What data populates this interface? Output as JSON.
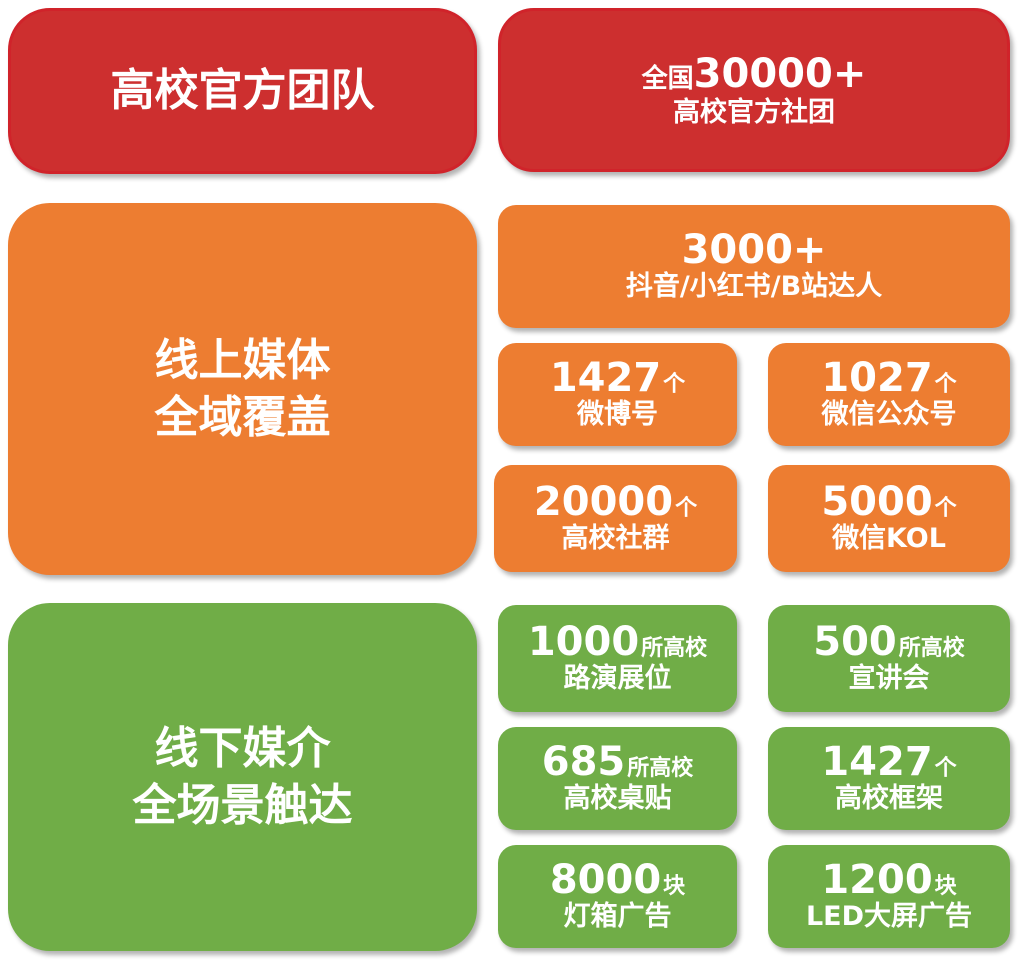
{
  "colors": {
    "red": "#CD2F2F",
    "orange": "#ED7D31",
    "green": "#70AD47"
  },
  "team": {
    "title": "高校官方团队",
    "stat_prefix": "全国",
    "stat_number": "30000+",
    "stat_label": "高校官方社团"
  },
  "online": {
    "title_line1": "线上媒体",
    "title_line2": "全域覆盖",
    "headline": {
      "number": "3000+",
      "label": "抖音/小红书/B站达人"
    },
    "items": [
      {
        "number": "1427",
        "unit": "个",
        "label": "微博号"
      },
      {
        "number": "1027",
        "unit": "个",
        "label": "微信公众号"
      },
      {
        "number": "20000",
        "unit": "个",
        "label": "高校社群"
      },
      {
        "number": "5000",
        "unit": "个",
        "label": "微信KOL"
      }
    ]
  },
  "offline": {
    "title_line1": "线下媒介",
    "title_line2": "全场景触达",
    "items": [
      {
        "number": "1000",
        "unit": "所高校",
        "label": "路演展位"
      },
      {
        "number": "500",
        "unit": "所高校",
        "label": "宣讲会"
      },
      {
        "number": "685",
        "unit": "所高校",
        "label": "高校桌贴"
      },
      {
        "number": "1427",
        "unit": "个",
        "label": "高校框架"
      },
      {
        "number": "8000",
        "unit": "块",
        "label": "灯箱广告"
      },
      {
        "number": "1200",
        "unit": "块",
        "label": "LED大屏广告"
      }
    ]
  }
}
